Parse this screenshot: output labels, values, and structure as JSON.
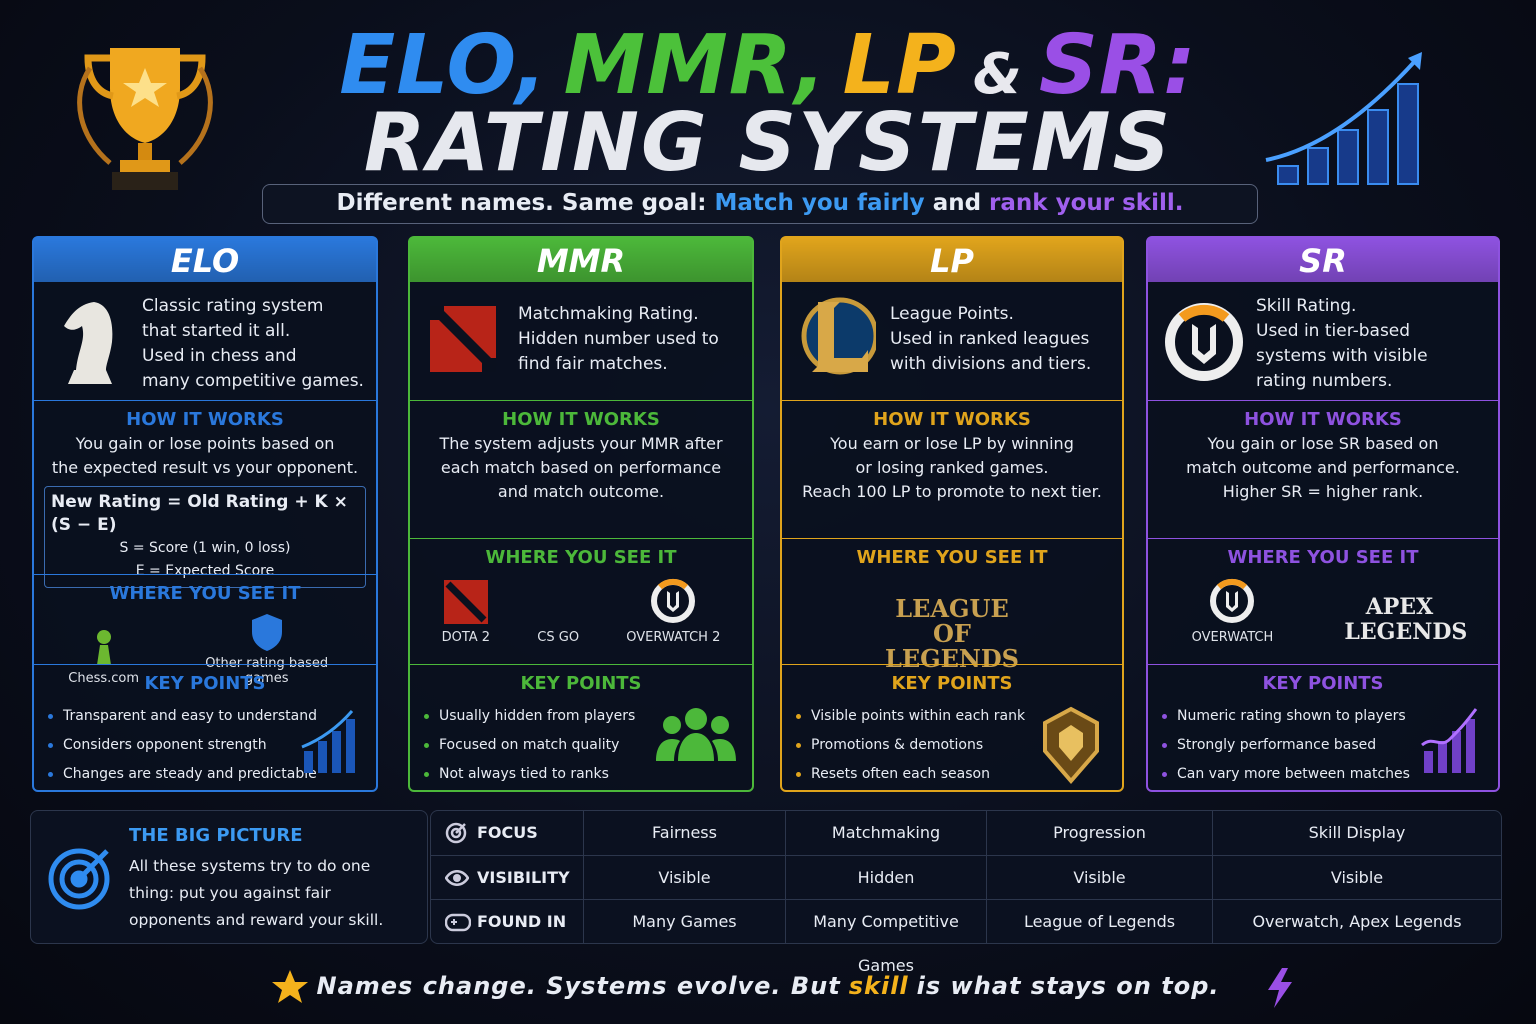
{
  "header": {
    "title_line1": [
      "ELO,",
      "MMR,",
      "LP",
      "&",
      "SR:"
    ],
    "title_line2": "RATING SYSTEMS",
    "subtitle": [
      "Different names. Same goal:",
      "Match you fairly",
      "and",
      "rank your skill."
    ]
  },
  "cards": [
    {
      "name": "ELO",
      "description": [
        "Classic rating system",
        "that started it all.",
        "Used in chess and",
        "many competitive games."
      ],
      "how_heading": "HOW IT WORKS",
      "how_text": [
        "You gain or lose points based on",
        "the expected result vs your opponent."
      ],
      "formula": [
        "New Rating =  Old Rating + K × (S − E)",
        "S = Score (1 win, 0 loss)",
        "E = Expected Score"
      ],
      "where_heading": "WHERE YOU SEE IT",
      "where": [
        "Chess.com",
        "Other rating based games"
      ],
      "key_heading": "KEY POINTS",
      "key_points": [
        "Transparent and easy to understand",
        "Considers opponent strength",
        "Changes are steady and predictable"
      ]
    },
    {
      "name": "MMR",
      "description": [
        "Matchmaking Rating.",
        "Hidden number used to",
        "find fair matches."
      ],
      "how_heading": "HOW IT WORKS",
      "how_text": [
        "The system adjusts your MMR after",
        "each match based on performance",
        "and match outcome."
      ],
      "where_heading": "WHERE YOU SEE IT",
      "where": [
        "DOTA 2",
        "CS GO",
        "OVERWATCH 2"
      ],
      "key_heading": "KEY POINTS",
      "key_points": [
        "Usually hidden from players",
        "Focused on match quality",
        "Not always tied to ranks"
      ]
    },
    {
      "name": "LP",
      "description": [
        "League Points.",
        "Used in ranked leagues",
        "with divisions and tiers."
      ],
      "how_heading": "HOW IT WORKS",
      "how_text": [
        "You earn or lose LP by winning",
        "or losing ranked games.",
        "Reach 100 LP to promote to next tier."
      ],
      "where_heading": "WHERE YOU SEE IT",
      "where": [
        "LEAGUE OF LEGENDS"
      ],
      "key_heading": "KEY POINTS",
      "key_points": [
        "Visible points within each rank",
        "Promotions & demotions",
        "Resets often each season"
      ]
    },
    {
      "name": "SR",
      "description": [
        "Skill Rating.",
        "Used in tier-based",
        "systems with visible",
        "rating numbers."
      ],
      "how_heading": "HOW IT WORKS",
      "how_text": [
        "You gain or lose SR based on",
        "match outcome and performance.",
        "Higher SR = higher rank."
      ],
      "where_heading": "WHERE YOU SEE IT",
      "where": [
        "OVERWATCH",
        "APEX LEGENDS"
      ],
      "key_heading": "KEY POINTS",
      "key_points": [
        "Numeric rating shown to players",
        "Strongly performance based",
        "Can vary more between matches"
      ]
    }
  ],
  "big_picture": {
    "title": "THE BIG PICTURE",
    "text": "All these systems try to do one thing: put you against fair opponents and reward your skill."
  },
  "comparison": {
    "rows": [
      {
        "label": "FOCUS",
        "values": [
          "Fairness",
          "Matchmaking",
          "Progression",
          "Skill Display"
        ]
      },
      {
        "label": "VISIBILITY",
        "values": [
          "Visible",
          "Hidden",
          "Visible",
          "Visible"
        ]
      },
      {
        "label": "FOUND IN",
        "values": [
          "Many Games",
          "Many Competitive Games",
          "League of Legends",
          "Overwatch, Apex Legends"
        ]
      }
    ]
  },
  "footer": [
    "Names change. Systems evolve. But",
    "skill",
    "is what stays on top."
  ]
}
